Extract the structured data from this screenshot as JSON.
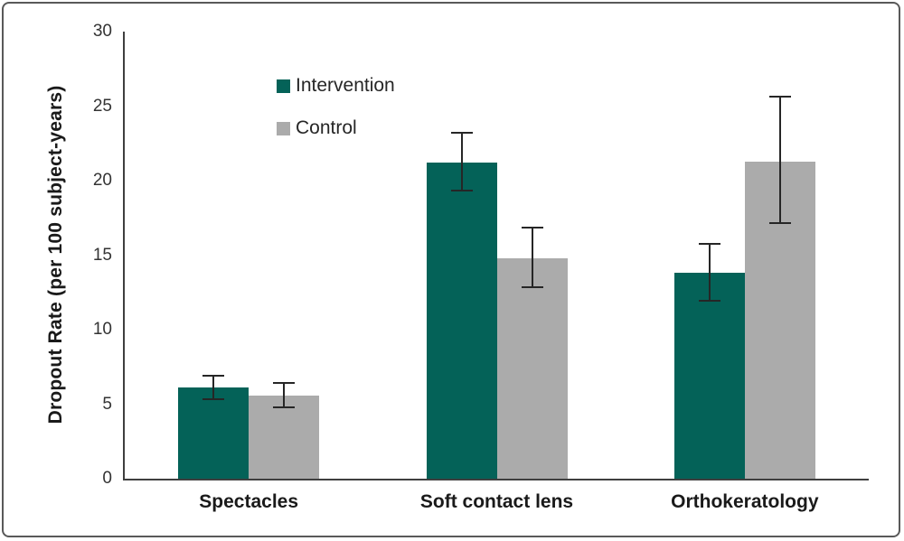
{
  "figure": {
    "background": "#FFFFFF",
    "border_color": "#595959",
    "axis_color": "#3F3F3F",
    "error_bar_color": "#262626",
    "text_color": "#1A1A1A"
  },
  "chart_data": {
    "type": "bar",
    "title": "",
    "xlabel": "",
    "ylabel": "Dropout Rate (per 100 subject-years)",
    "ylim": [
      0,
      30
    ],
    "yticks": [
      0,
      5,
      10,
      15,
      20,
      25,
      30
    ],
    "grid": false,
    "legend_position": "top-left",
    "categories": [
      "Spectacles",
      "Soft contact lens",
      "Orthokeratology"
    ],
    "series": [
      {
        "name": "Intervention",
        "color": "#046258",
        "values": [
          6.1,
          21.2,
          13.8
        ],
        "error_low": [
          5.3,
          19.3,
          11.9
        ],
        "error_high": [
          7.0,
          23.3,
          15.8
        ]
      },
      {
        "name": "Control",
        "color": "#ABABAB",
        "values": [
          5.6,
          14.8,
          21.3
        ],
        "error_low": [
          4.7,
          12.8,
          17.1
        ],
        "error_high": [
          6.5,
          16.9,
          25.7
        ]
      }
    ]
  }
}
